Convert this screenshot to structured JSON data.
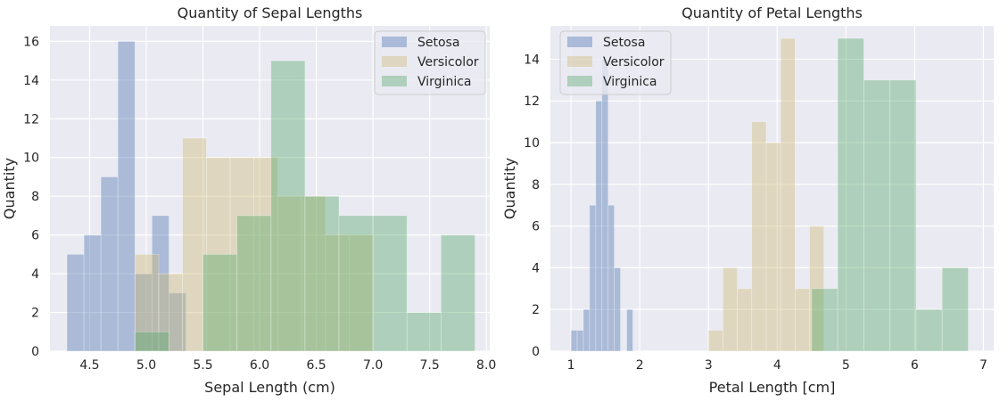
{
  "chart_data": [
    {
      "type": "bar",
      "title": "Quantity of Sepal Lengths",
      "xlabel": "Sepal Length (cm)",
      "ylabel": "Quantity",
      "xlim": [
        4.15,
        8.03
      ],
      "ylim": [
        0,
        16.8
      ],
      "xticks": [
        4.5,
        5.0,
        5.5,
        6.0,
        6.5,
        7.0,
        7.5,
        8.0
      ],
      "xtick_labels": [
        "4.5",
        "5.0",
        "5.5",
        "6.0",
        "6.5",
        "7.0",
        "7.5",
        "8.0"
      ],
      "yticks": [
        0,
        2,
        4,
        6,
        8,
        10,
        12,
        14,
        16
      ],
      "ytick_labels": [
        "0",
        "2",
        "4",
        "6",
        "8",
        "10",
        "12",
        "14",
        "16"
      ],
      "grid": true,
      "legend_position": "top-right",
      "series": [
        {
          "name": "Setosa",
          "color": "#4c72b0",
          "bins": [
            4.3,
            4.45,
            4.6,
            4.75,
            4.9,
            5.05,
            5.2,
            5.35,
            5.5,
            5.65,
            5.8
          ],
          "values": [
            5,
            6,
            9,
            16,
            4,
            7,
            3,
            0,
            0,
            0
          ]
        },
        {
          "name": "Versicolor",
          "color": "#ccb974",
          "bins": [
            4.9,
            5.11,
            5.32,
            5.53,
            5.74,
            5.95,
            6.16,
            6.37,
            6.58,
            6.79,
            7.0
          ],
          "values": [
            5,
            4,
            11,
            10,
            10,
            10,
            8,
            8,
            6,
            6
          ]
        },
        {
          "name": "Virginica",
          "color": "#55a868",
          "bins": [
            4.9,
            5.2,
            5.5,
            5.8,
            6.1,
            6.4,
            6.7,
            7.0,
            7.3,
            7.6,
            7.9
          ],
          "values": [
            1,
            0,
            5,
            7,
            15,
            8,
            7,
            7,
            2,
            6
          ]
        }
      ]
    },
    {
      "type": "bar",
      "title": "Quantity of Petal Lengths",
      "xlabel": "Petal Length [cm]",
      "ylabel": "Quantity",
      "xlim": [
        0.7,
        7.15
      ],
      "ylim": [
        0,
        15.6
      ],
      "xticks": [
        1,
        2,
        3,
        4,
        5,
        6,
        7
      ],
      "xtick_labels": [
        "1",
        "2",
        "3",
        "4",
        "5",
        "6",
        "7"
      ],
      "yticks": [
        0,
        2,
        4,
        6,
        8,
        10,
        12,
        14
      ],
      "ytick_labels": [
        "0",
        "2",
        "4",
        "6",
        "8",
        "10",
        "12",
        "14"
      ],
      "grid": true,
      "legend_position": "top-left",
      "series": [
        {
          "name": "Setosa",
          "color": "#4c72b0",
          "bins": [
            1.0,
            1.09,
            1.18,
            1.27,
            1.36,
            1.45,
            1.54,
            1.63,
            1.72,
            1.81,
            1.9
          ],
          "values": [
            1,
            1,
            2,
            7,
            12,
            14,
            7,
            4,
            0,
            2
          ]
        },
        {
          "name": "Versicolor",
          "color": "#ccb974",
          "bins": [
            3.0,
            3.21,
            3.42,
            3.63,
            3.84,
            4.05,
            4.26,
            4.47,
            4.68,
            4.89,
            5.1
          ],
          "values": [
            1,
            4,
            3,
            11,
            10,
            15,
            3,
            6,
            0,
            0
          ]
        },
        {
          "name": "Virginica",
          "color": "#55a868",
          "bins": [
            4.5,
            4.88,
            5.26,
            5.64,
            6.02,
            6.4,
            6.78
          ],
          "values": [
            3,
            15,
            13,
            13,
            2,
            4
          ]
        }
      ]
    }
  ]
}
